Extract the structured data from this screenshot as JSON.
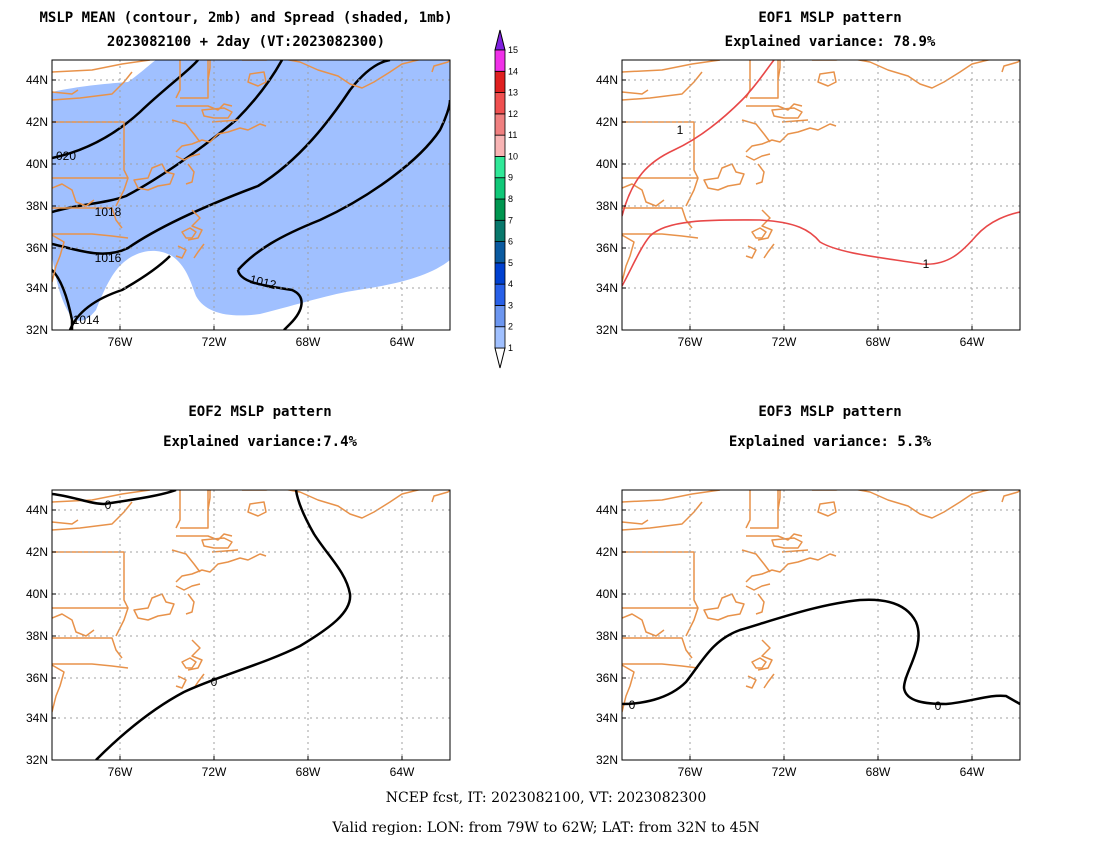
{
  "panels": [
    {
      "id": "p1",
      "title1": "MSLP MEAN (contour, 2mb) and Spread (shaded, 1mb)",
      "title2": "2023082100 + 2day (VT:2023082300)",
      "contour_labels": [
        "020",
        "1018",
        "1016",
        "1014",
        "1012"
      ]
    },
    {
      "id": "p2",
      "title1": "EOF1 MSLP pattern",
      "title2": "Explained variance: 78.9%",
      "contour_labels": [
        "1",
        "1"
      ],
      "contour_color": "#e84848"
    },
    {
      "id": "p3",
      "title1": "EOF2 MSLP pattern",
      "title2": "Explained variance:7.4%",
      "contour_labels": [
        "0",
        "0"
      ],
      "contour_color": "#000000"
    },
    {
      "id": "p4",
      "title1": "EOF3 MSLP pattern",
      "title2": "Explained variance: 5.3%",
      "contour_labels": [
        "0",
        "0"
      ],
      "contour_color": "#000000"
    }
  ],
  "lat_ticks": [
    "44N",
    "42N",
    "40N",
    "38N",
    "36N",
    "34N",
    "32N"
  ],
  "lon_ticks": [
    "76W",
    "72W",
    "68W",
    "64W"
  ],
  "colorbar": {
    "labels": [
      "1",
      "2",
      "3",
      "4",
      "5",
      "6",
      "7",
      "8",
      "9",
      "10",
      "11",
      "12",
      "13",
      "14",
      "15"
    ],
    "colors": [
      "#ffffff",
      "#a0c0ff",
      "#6c96f0",
      "#2860e8",
      "#0040d0",
      "#0a5aa0",
      "#08786c",
      "#009650",
      "#10c878",
      "#30e898",
      "#f8b4b4",
      "#f08080",
      "#f05050",
      "#e02020",
      "#f030e8",
      "#8020e0"
    ]
  },
  "colors": {
    "coast": "#e8924a",
    "spread_shade": "#a0c0ff",
    "mean_contour": "#000000"
  },
  "footer": {
    "line1": "NCEP fcst, IT: 2023082100, VT: 2023082300",
    "line2": "Valid region: LON: from 79W to 62W; LAT: from 32N to 45N"
  }
}
